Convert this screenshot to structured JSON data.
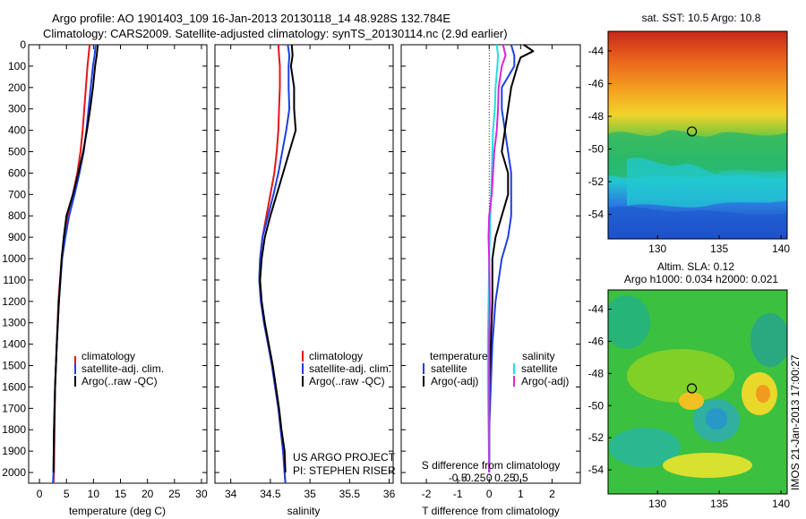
{
  "header": {
    "line1": "Argo profile: AO 1901403_109 16-Jan-2013 20130118_14 48.928S 132.784E",
    "line2": "Climatology: CARS2009. Satellite-adjusted climatology: synTS_20130114.nc (2.9d earlier)"
  },
  "side_stamp": "IMOS 21-Jan-2013 17:00:27",
  "colors": {
    "red": "#e4141b",
    "blue": "#1f3fe0",
    "black": "#000000",
    "cyan": "#22e0e0",
    "magenta": "#d926d9"
  },
  "chart_data": [
    {
      "type": "line",
      "xlabel": "temperature (deg C)",
      "xticks": [
        "0",
        "5",
        "10",
        "15",
        "20",
        "25",
        "30"
      ],
      "xlim": [
        -2,
        31
      ],
      "ylim": [
        0,
        2050
      ],
      "yticks": [
        "0",
        "100",
        "200",
        "300",
        "400",
        "500",
        "600",
        "700",
        "800",
        "900",
        "1000",
        "1100",
        "1200",
        "1300",
        "1400",
        "1500",
        "1600",
        "1700",
        "1800",
        "1900",
        "2000"
      ],
      "legend": [
        "climatology",
        "satellite-adj. clim.",
        "Argo(..raw -QC)"
      ],
      "series": [
        {
          "name": "climatology",
          "color": "red",
          "depth": [
            0,
            50,
            100,
            200,
            300,
            400,
            500,
            600,
            700,
            800,
            900,
            1000,
            1200,
            1400,
            1600,
            1800,
            2000,
            2050
          ],
          "values": [
            9.3,
            9.1,
            8.9,
            8.6,
            8.3,
            8.0,
            7.6,
            7.0,
            6.2,
            5.2,
            4.6,
            4.1,
            3.5,
            3.2,
            2.9,
            2.8,
            2.7,
            2.6
          ]
        },
        {
          "name": "satellite-adj. clim.",
          "color": "blue",
          "depth": [
            0,
            50,
            100,
            200,
            300,
            400,
            500,
            600,
            700,
            800,
            900,
            1000,
            1200,
            1400,
            1600,
            1800,
            2000,
            2050
          ],
          "values": [
            10.4,
            10.2,
            9.9,
            9.5,
            9.1,
            8.7,
            8.2,
            7.4,
            6.5,
            5.5,
            4.8,
            4.2,
            3.6,
            3.2,
            2.9,
            2.7,
            2.6,
            2.5
          ]
        },
        {
          "name": "Argo(..raw -QC)",
          "color": "black",
          "depth": [
            0,
            50,
            100,
            200,
            300,
            400,
            500,
            600,
            700,
            800,
            900,
            1000,
            1200,
            1400,
            1600,
            1800,
            2000
          ],
          "values": [
            10.8,
            10.6,
            10.3,
            9.9,
            9.4,
            8.8,
            8.1,
            7.2,
            6.2,
            5.0,
            4.5,
            4.1,
            3.6,
            3.2,
            2.9,
            2.7,
            2.6
          ]
        }
      ]
    },
    {
      "type": "line",
      "xlabel": "salinity",
      "xticks": [
        "34",
        "34.5",
        "35",
        "35.5",
        "36"
      ],
      "xlim": [
        33.8,
        36.05
      ],
      "ylim": [
        0,
        2050
      ],
      "legend": [
        "climatology",
        "satellite-adj. clim.",
        "Argo(..raw -QC)"
      ],
      "annotation": [
        "US ARGO PROJECT",
        "PI: STEPHEN RISER"
      ],
      "series": [
        {
          "name": "climatology",
          "color": "red",
          "depth": [
            0,
            50,
            100,
            200,
            300,
            400,
            500,
            600,
            700,
            800,
            900,
            1000,
            1100,
            1200,
            1300,
            1400,
            1500,
            1600,
            1700,
            1800,
            1900,
            2000,
            2050
          ],
          "values": [
            34.6,
            34.61,
            34.62,
            34.62,
            34.61,
            34.6,
            34.58,
            34.55,
            34.5,
            34.45,
            34.4,
            34.37,
            34.36,
            34.38,
            34.42,
            34.47,
            34.52,
            34.56,
            34.6,
            34.63,
            34.66,
            34.68,
            34.69
          ]
        },
        {
          "name": "satellite-adj. clim.",
          "color": "blue",
          "depth": [
            0,
            50,
            100,
            200,
            300,
            400,
            500,
            600,
            700,
            800,
            900,
            1000,
            1100,
            1200,
            1300,
            1400,
            1500,
            1600,
            1700,
            1800,
            1900,
            2000,
            2050
          ],
          "values": [
            34.72,
            34.74,
            34.73,
            34.73,
            34.74,
            34.7,
            34.65,
            34.6,
            34.54,
            34.47,
            34.4,
            34.37,
            34.36,
            34.38,
            34.42,
            34.47,
            34.52,
            34.56,
            34.6,
            34.63,
            34.66,
            34.68,
            34.69
          ]
        },
        {
          "name": "Argo(..raw -QC)",
          "color": "black",
          "depth": [
            0,
            50,
            100,
            200,
            300,
            400,
            500,
            600,
            700,
            800,
            900,
            1000,
            1100,
            1200,
            1300,
            1400,
            1500,
            1600,
            1700,
            1800,
            1900,
            2000
          ],
          "values": [
            34.77,
            34.78,
            34.76,
            34.8,
            34.8,
            34.82,
            34.74,
            34.66,
            34.58,
            34.5,
            34.43,
            34.39,
            34.37,
            34.39,
            34.43,
            34.48,
            34.53,
            34.57,
            34.61,
            34.64,
            34.68,
            34.69
          ]
        }
      ]
    },
    {
      "type": "line",
      "xlabel": "T difference from climatology",
      "xlabel_top": "S difference from climatology",
      "xticks": [
        "-2",
        "-1",
        "0",
        "1",
        "2"
      ],
      "xlim": [
        -2.8,
        2.9
      ],
      "xticks_top": [
        "-0.5",
        "-0.25",
        "0",
        "0.25",
        "0.5"
      ],
      "xlim_top": [
        -1.4,
        1.45
      ],
      "ylim": [
        0,
        2050
      ],
      "legend_temperature_title": "temperature",
      "legend_salinity_title": "salinity",
      "legend": [
        "satellite",
        "Argo(-adj)",
        "satellite",
        "Argo(-adj)"
      ],
      "series": [
        {
          "name": "satellite",
          "group": "temperature",
          "color": "blue",
          "depth": [
            0,
            50,
            100,
            150,
            200,
            300,
            400,
            500,
            600,
            700,
            800,
            900,
            1000,
            1200,
            1400,
            1600,
            1800,
            2000
          ],
          "values": [
            0.7,
            0.8,
            0.8,
            0.6,
            0.4,
            0.4,
            0.5,
            0.6,
            0.7,
            0.7,
            0.7,
            0.6,
            0.4,
            0.2,
            0.1,
            0.05,
            0.0,
            0.0
          ]
        },
        {
          "name": "Argo(-adj)",
          "group": "temperature",
          "color": "black",
          "depth": [
            0,
            30,
            60,
            100,
            150,
            200,
            300,
            400,
            500,
            600,
            700,
            800,
            900,
            1000,
            1200,
            1400,
            1600,
            1800,
            2000
          ],
          "values": [
            1.1,
            1.4,
            1.0,
            0.9,
            0.8,
            0.7,
            0.6,
            0.5,
            0.4,
            0.6,
            0.6,
            0.4,
            0.2,
            0.1,
            0.1,
            0.05,
            0.0,
            0.0,
            0.0
          ]
        },
        {
          "name": "satellite",
          "group": "salinity",
          "color": "cyan",
          "depth": [
            0,
            50,
            100,
            200,
            300,
            400,
            500,
            600,
            700,
            800,
            900,
            1000,
            1200,
            1400,
            1600,
            1800,
            2000
          ],
          "values": [
            0.12,
            0.14,
            0.13,
            0.1,
            0.09,
            0.06,
            0.05,
            0.04,
            0.03,
            0.02,
            0.01,
            0.0,
            -0.01,
            -0.02,
            -0.02,
            -0.01,
            0.0
          ]
        },
        {
          "name": "Argo(-adj)",
          "group": "salinity",
          "color": "magenta",
          "depth": [
            0,
            50,
            100,
            200,
            300,
            400,
            500,
            600,
            700,
            800,
            900,
            1000,
            1200,
            1400,
            1600,
            1800,
            2000
          ],
          "values": [
            0.22,
            0.26,
            0.2,
            0.15,
            0.14,
            0.12,
            0.08,
            0.06,
            0.04,
            0.0,
            -0.01,
            0.0,
            0.01,
            0.0,
            0.0,
            0.0,
            0.0
          ]
        }
      ]
    },
    {
      "type": "heatmap",
      "title": "sat. SST: 10.5 Argo: 10.8",
      "xticks": [
        "130",
        "135",
        "140"
      ],
      "xlim": [
        126,
        140.5
      ],
      "yticks": [
        "-44",
        "-46",
        "-48",
        "-50",
        "-52",
        "-54"
      ],
      "ylim": [
        -55.5,
        -42.8
      ],
      "marker": {
        "lon": 132.784,
        "lat": -48.928
      }
    },
    {
      "type": "heatmap",
      "title_line1": "Altim. SLA: 0.12",
      "title_line2": "Argo h1000: 0.034 h2000: 0.021",
      "xticks": [
        "130",
        "135",
        "140"
      ],
      "xlim": [
        126,
        140.5
      ],
      "yticks": [
        "-44",
        "-46",
        "-48",
        "-50",
        "-52",
        "-54"
      ],
      "ylim": [
        -55.5,
        -42.8
      ],
      "marker": {
        "lon": 132.784,
        "lat": -48.928
      }
    }
  ]
}
